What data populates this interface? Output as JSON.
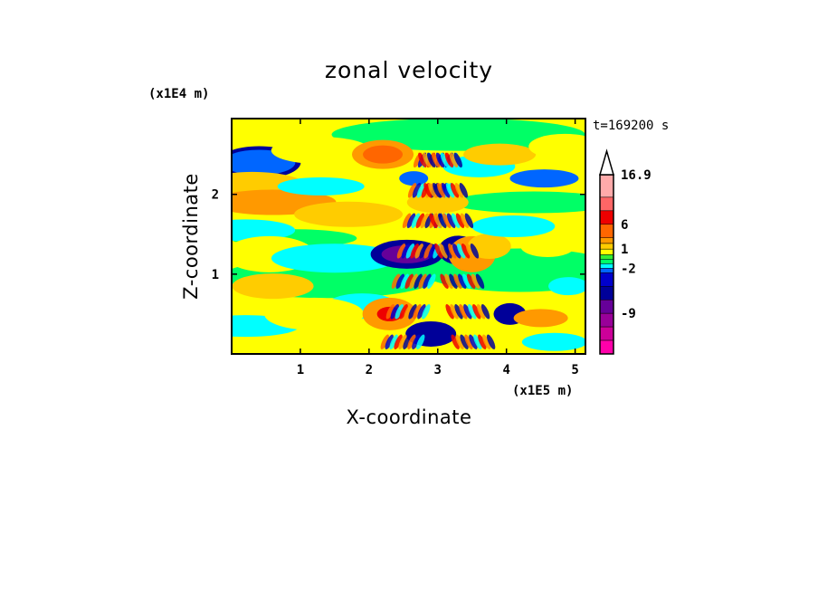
{
  "chart_data": {
    "type": "heatmap",
    "title": "zonal velocity",
    "xlabel": "X-coordinate",
    "ylabel": "Z-coordinate",
    "x_unit": "(x1E5 m)",
    "y_unit": "(x1E4 m)",
    "time_label": "t=169200 s",
    "xlim": [
      0,
      5.15
    ],
    "ylim": [
      0,
      2.95
    ],
    "x_ticks": [
      {
        "value": 1,
        "label": "1"
      },
      {
        "value": 2,
        "label": "2"
      },
      {
        "value": 3,
        "label": "3"
      },
      {
        "value": 4,
        "label": "4"
      },
      {
        "value": 5,
        "label": "5"
      }
    ],
    "y_ticks": [
      {
        "value": 1,
        "label": "1"
      },
      {
        "value": 2,
        "label": "2"
      }
    ],
    "colorbar": {
      "levels": [
        {
          "value": -15,
          "color": "#ff00aa"
        },
        {
          "value": -12,
          "color": "#cc0099"
        },
        {
          "value": -9,
          "color": "#990099"
        },
        {
          "value": -6,
          "color": "#660099"
        },
        {
          "value": -4,
          "color": "#000099"
        },
        {
          "value": -3,
          "color": "#0000cc"
        },
        {
          "value": -2,
          "color": "#0066ff"
        },
        {
          "value": -1,
          "color": "#00ffff"
        },
        {
          "value": 0,
          "color": "#00ff66"
        },
        {
          "value": 0.5,
          "color": "#33ee33"
        },
        {
          "value": 1,
          "color": "#ffff00"
        },
        {
          "value": 2,
          "color": "#ffcc00"
        },
        {
          "value": 3,
          "color": "#ff9900"
        },
        {
          "value": 6,
          "color": "#ff6600"
        },
        {
          "value": 9,
          "color": "#ee0000"
        },
        {
          "value": 12,
          "color": "#ff6666"
        },
        {
          "value": 16.9,
          "color": "#ffaaaa"
        }
      ],
      "labels": [
        {
          "value": 16.9,
          "label": "16.9"
        },
        {
          "value": 6,
          "label": "6"
        },
        {
          "value": 1,
          "label": "1"
        },
        {
          "value": -2,
          "label": "-2"
        },
        {
          "value": -9,
          "label": "-9"
        }
      ],
      "extend": "max"
    },
    "field_patches": [
      {
        "x": 0.4,
        "z": 2.4,
        "v": -4
      },
      {
        "x": 0.4,
        "z": 2.4,
        "v": -2
      },
      {
        "x": 0.3,
        "z": 2.1,
        "v": 2
      },
      {
        "x": 0.6,
        "z": 1.9,
        "v": 3
      },
      {
        "x": 0.2,
        "z": 1.55,
        "v": -1
      },
      {
        "x": 0.55,
        "z": 1.25,
        "v": 1
      },
      {
        "x": 0.6,
        "z": 0.85,
        "v": 2
      },
      {
        "x": 0.2,
        "z": 0.35,
        "v": -1
      },
      {
        "x": 1.3,
        "z": 2.55,
        "v": 1
      },
      {
        "x": 1.3,
        "z": 2.1,
        "v": -1
      },
      {
        "x": 1.7,
        "z": 1.75,
        "v": 2
      },
      {
        "x": 1.5,
        "z": 1.2,
        "v": -1
      },
      {
        "x": 1.9,
        "z": 0.6,
        "v": -1
      },
      {
        "x": 1.2,
        "z": 0.5,
        "v": 1
      },
      {
        "x": 2.2,
        "z": 2.5,
        "v": 3
      },
      {
        "x": 2.2,
        "z": 2.5,
        "v": 6
      },
      {
        "x": 2.3,
        "z": 0.5,
        "v": 3
      },
      {
        "x": 2.3,
        "z": 0.5,
        "v": 9
      },
      {
        "x": 2.55,
        "z": 1.25,
        "v": -4
      },
      {
        "x": 2.55,
        "z": 1.25,
        "v": -6
      },
      {
        "x": 2.9,
        "z": 0.25,
        "v": -4
      },
      {
        "x": 2.65,
        "z": 2.2,
        "v": -2
      },
      {
        "x": 3.0,
        "z": 1.9,
        "v": 2
      },
      {
        "x": 3.3,
        "z": 1.3,
        "v": -4
      },
      {
        "x": 3.5,
        "z": 1.25,
        "v": 3
      },
      {
        "x": 3.75,
        "z": 1.35,
        "v": 2
      },
      {
        "x": 3.6,
        "z": 2.35,
        "v": -1
      },
      {
        "x": 3.9,
        "z": 2.5,
        "v": 2
      },
      {
        "x": 4.1,
        "z": 1.6,
        "v": -1
      },
      {
        "x": 4.55,
        "z": 2.2,
        "v": -2
      },
      {
        "x": 4.85,
        "z": 2.6,
        "v": 1
      },
      {
        "x": 4.6,
        "z": 1.35,
        "v": 1
      },
      {
        "x": 4.05,
        "z": 0.5,
        "v": -4
      },
      {
        "x": 4.5,
        "z": 0.45,
        "v": 3
      },
      {
        "x": 4.9,
        "z": 0.85,
        "v": -1
      },
      {
        "x": 4.7,
        "z": 0.15,
        "v": -1
      }
    ]
  }
}
